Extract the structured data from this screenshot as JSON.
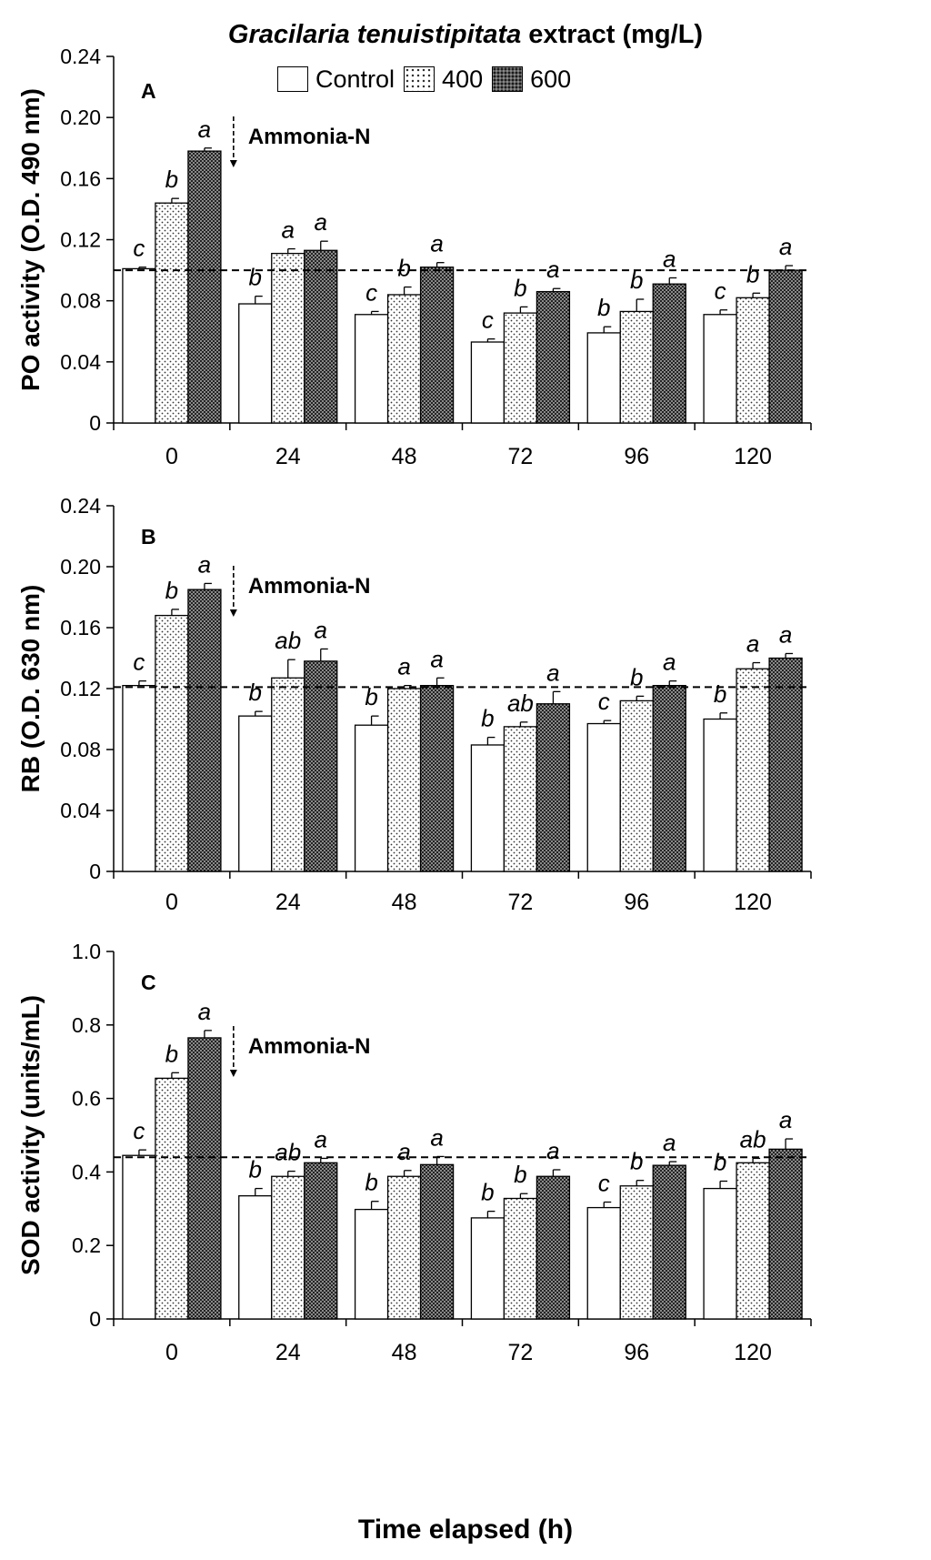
{
  "figure": {
    "title_italic": "Gracilaria tenuistipitata",
    "title_rest": " extract (mg/L)",
    "legend": [
      {
        "label": "Control",
        "pattern": "white"
      },
      {
        "label": "400",
        "pattern": "dots"
      },
      {
        "label": "600",
        "pattern": "dense"
      }
    ],
    "x_axis_title": "Time elapsed (h)",
    "annotation": "Ammonia-N"
  },
  "chart_data": [
    {
      "type": "bar",
      "panel": "A",
      "title": "Gracilaria tenuistipitata extract (mg/L)",
      "ylabel": "PO activity (O.D. 490 nm)",
      "xlabel": "Time elapsed (h)",
      "categories": [
        "0",
        "24",
        "48",
        "72",
        "96",
        "120"
      ],
      "ylim": [
        0,
        0.24
      ],
      "yticks": [
        "0",
        "0.04",
        "0.08",
        "0.12",
        "0.16",
        "0.20",
        "0.24"
      ],
      "reference_line": 0.1,
      "series": [
        {
          "name": "Control",
          "values": [
            0.101,
            0.078,
            0.071,
            0.053,
            0.059,
            0.071
          ],
          "errors": [
            0.001,
            0.005,
            0.002,
            0.002,
            0.004,
            0.003
          ],
          "letters": [
            "c",
            "b",
            "c",
            "c",
            "b",
            "c"
          ]
        },
        {
          "name": "400",
          "values": [
            0.144,
            0.111,
            0.084,
            0.072,
            0.073,
            0.082
          ],
          "errors": [
            0.003,
            0.003,
            0.005,
            0.004,
            0.008,
            0.003
          ],
          "letters": [
            "b",
            "a",
            "b",
            "b",
            "b",
            "b"
          ]
        },
        {
          "name": "600",
          "values": [
            0.178,
            0.113,
            0.102,
            0.086,
            0.091,
            0.1
          ],
          "errors": [
            0.002,
            0.006,
            0.003,
            0.002,
            0.004,
            0.003
          ],
          "letters": [
            "a",
            "a",
            "a",
            "a",
            "a",
            "a"
          ]
        }
      ]
    },
    {
      "type": "bar",
      "panel": "B",
      "ylabel": "RB (O.D. 630 nm)",
      "xlabel": "Time elapsed (h)",
      "categories": [
        "0",
        "24",
        "48",
        "72",
        "96",
        "120"
      ],
      "ylim": [
        0,
        0.24
      ],
      "yticks": [
        "0",
        "0.04",
        "0.08",
        "0.12",
        "0.16",
        "0.20",
        "0.24"
      ],
      "reference_line": 0.121,
      "series": [
        {
          "name": "Control",
          "values": [
            0.122,
            0.102,
            0.096,
            0.083,
            0.097,
            0.1
          ],
          "errors": [
            0.003,
            0.003,
            0.006,
            0.005,
            0.002,
            0.004
          ],
          "letters": [
            "c",
            "b",
            "b",
            "b",
            "c",
            "b"
          ]
        },
        {
          "name": "400",
          "values": [
            0.168,
            0.127,
            0.12,
            0.095,
            0.112,
            0.133
          ],
          "errors": [
            0.004,
            0.012,
            0.002,
            0.003,
            0.003,
            0.004
          ],
          "letters": [
            "b",
            "ab",
            "a",
            "ab",
            "b",
            "a"
          ]
        },
        {
          "name": "600",
          "values": [
            0.185,
            0.138,
            0.122,
            0.11,
            0.122,
            0.14
          ],
          "errors": [
            0.004,
            0.008,
            0.005,
            0.008,
            0.003,
            0.003
          ],
          "letters": [
            "a",
            "a",
            "a",
            "a",
            "a",
            "a"
          ]
        }
      ]
    },
    {
      "type": "bar",
      "panel": "C",
      "ylabel": "SOD activity (units/mL)",
      "xlabel": "Time elapsed (h)",
      "categories": [
        "0",
        "24",
        "48",
        "72",
        "96",
        "120"
      ],
      "ylim": [
        0,
        1.0
      ],
      "yticks": [
        "0",
        "0.2",
        "0.4",
        "0.6",
        "0.8",
        "1.0"
      ],
      "reference_line": 0.44,
      "series": [
        {
          "name": "Control",
          "values": [
            0.445,
            0.335,
            0.298,
            0.275,
            0.303,
            0.355
          ],
          "errors": [
            0.015,
            0.02,
            0.022,
            0.018,
            0.015,
            0.02
          ],
          "letters": [
            "c",
            "b",
            "b",
            "b",
            "c",
            "b"
          ]
        },
        {
          "name": "400",
          "values": [
            0.655,
            0.388,
            0.388,
            0.328,
            0.362,
            0.425
          ],
          "errors": [
            0.015,
            0.014,
            0.016,
            0.013,
            0.015,
            0.012
          ],
          "letters": [
            "b",
            "ab",
            "a",
            "b",
            "b",
            "ab"
          ]
        },
        {
          "name": "600",
          "values": [
            0.765,
            0.425,
            0.42,
            0.388,
            0.418,
            0.462
          ],
          "errors": [
            0.02,
            0.012,
            0.022,
            0.018,
            0.01,
            0.028
          ],
          "letters": [
            "a",
            "a",
            "a",
            "a",
            "a",
            "a"
          ]
        }
      ]
    }
  ]
}
